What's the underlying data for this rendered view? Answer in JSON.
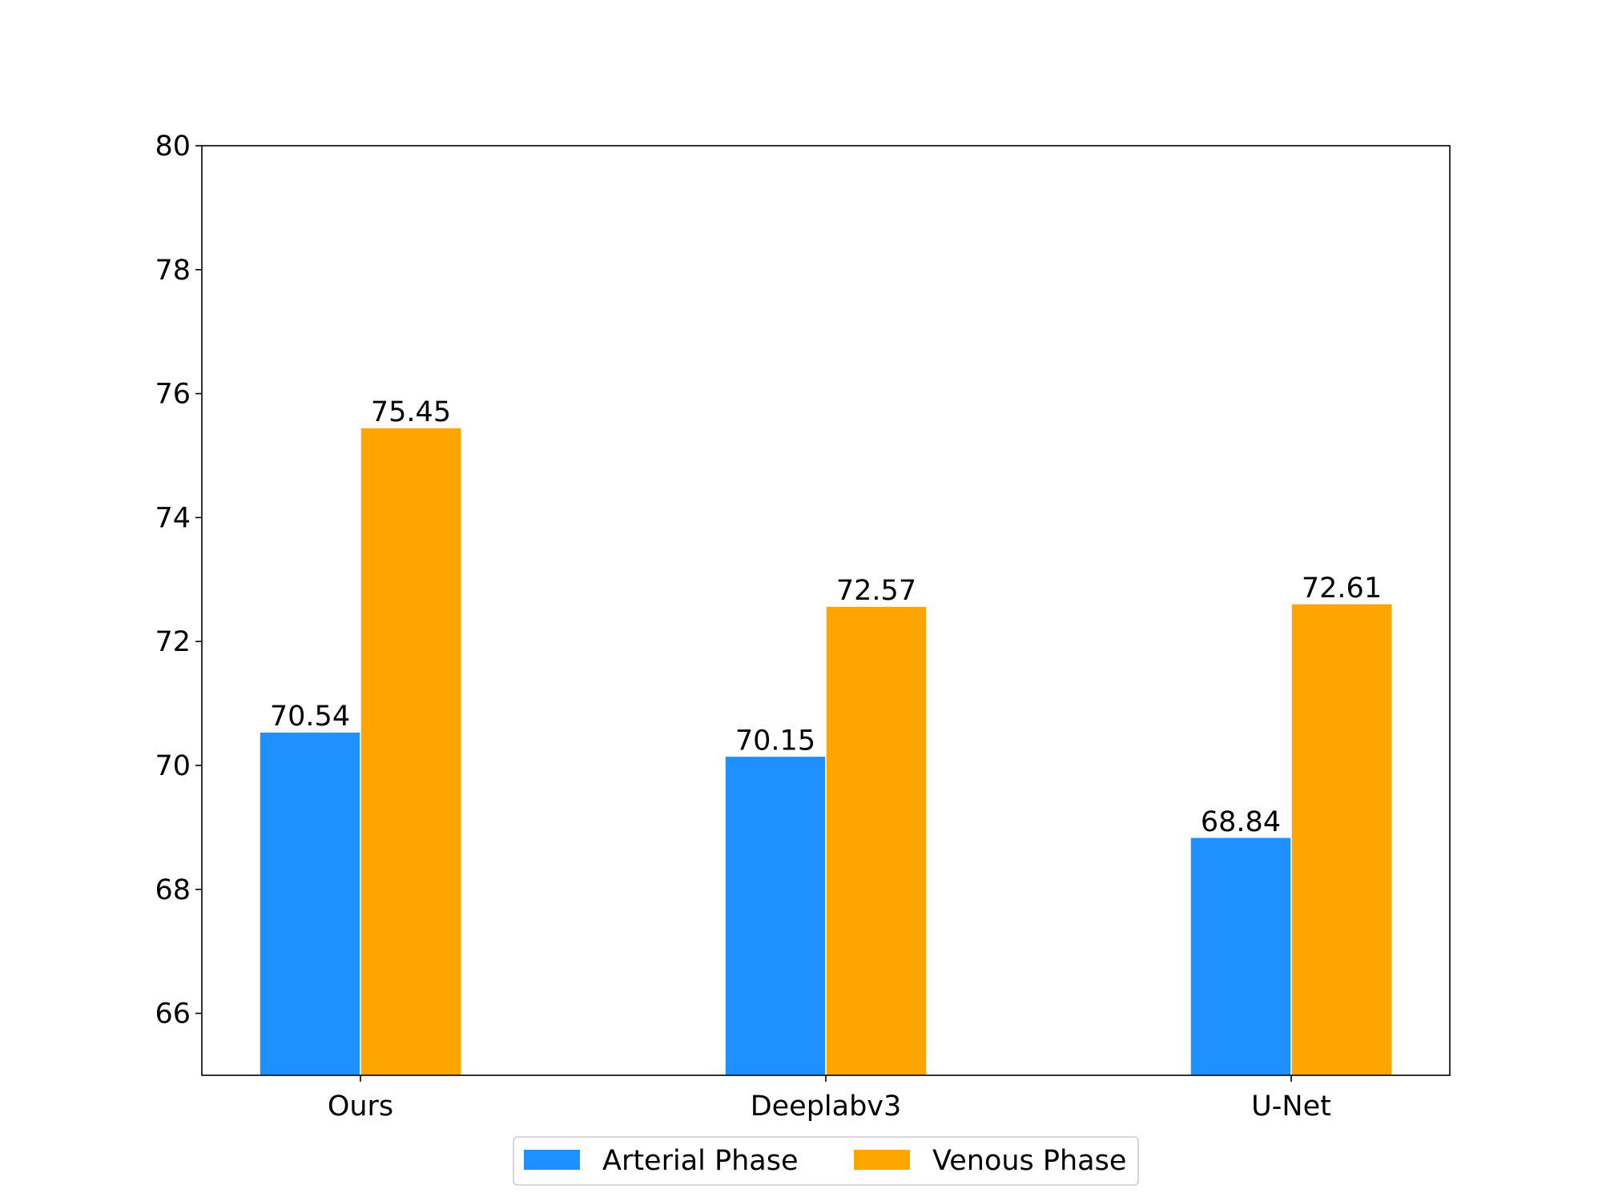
{
  "chart_data": {
    "type": "bar",
    "categories": [
      "Ours",
      "Deeplabv3",
      "U-Net"
    ],
    "series": [
      {
        "name": "Arterial Phase",
        "color": "#1e90ff",
        "values": [
          70.54,
          70.15,
          68.84
        ]
      },
      {
        "name": "Venous Phase",
        "color": "#ffa500",
        "values": [
          75.45,
          72.57,
          72.61
        ]
      }
    ],
    "value_labels": [
      [
        "70.54",
        "70.15",
        "68.84"
      ],
      [
        "75.45",
        "72.57",
        "72.61"
      ]
    ],
    "ylim": [
      65,
      80
    ],
    "yticks": [
      "66",
      "68",
      "70",
      "72",
      "74",
      "76",
      "78",
      "80"
    ],
    "grid": false,
    "legend_position": "bottom-center"
  }
}
